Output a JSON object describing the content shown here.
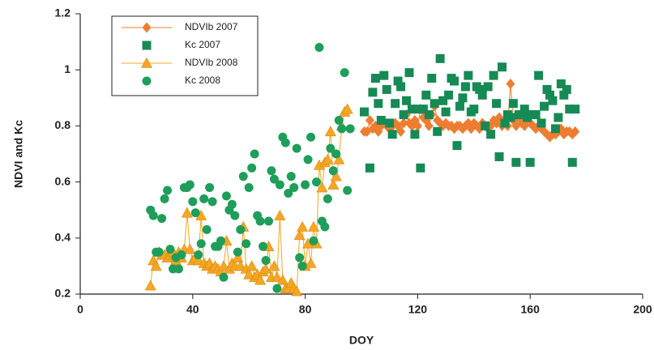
{
  "chart_data": {
    "type": "scatter",
    "xlabel": "DOY",
    "ylabel": "NDVI and Kc",
    "xlim": [
      0,
      200
    ],
    "xticks": [
      0,
      40,
      80,
      120,
      160,
      200
    ],
    "ylim": [
      0.2,
      1.2
    ],
    "yticks": [
      0.2,
      0.4,
      0.6,
      0.8,
      1,
      1.2
    ],
    "series": [
      {
        "name": "NDVIb 2007",
        "color": "#ee7d31",
        "marker": "diamond",
        "line": true,
        "x": [
          101,
          102,
          103,
          104,
          105,
          106,
          107,
          108,
          109,
          110,
          111,
          112,
          113,
          114,
          115,
          116,
          117,
          118,
          119,
          120,
          121,
          122,
          123,
          124,
          125,
          126,
          127,
          128,
          129,
          130,
          131,
          132,
          133,
          134,
          135,
          136,
          137,
          138,
          139,
          140,
          141,
          142,
          143,
          144,
          145,
          146,
          147,
          148,
          149,
          150,
          151,
          152,
          153,
          154,
          155,
          156,
          157,
          158,
          159,
          160,
          161,
          162,
          163,
          164,
          165,
          166,
          167,
          168,
          169,
          170,
          171,
          172,
          173,
          174,
          175,
          176
        ],
        "values": [
          0.78,
          0.78,
          0.82,
          0.79,
          0.8,
          0.78,
          0.8,
          0.81,
          0.8,
          0.79,
          0.8,
          0.81,
          0.8,
          0.78,
          0.81,
          0.84,
          0.81,
          0.8,
          0.82,
          0.8,
          0.86,
          0.83,
          0.82,
          0.8,
          0.84,
          0.87,
          0.82,
          0.81,
          0.8,
          0.81,
          0.8,
          0.8,
          0.79,
          0.8,
          0.8,
          0.79,
          0.8,
          0.81,
          0.79,
          0.81,
          0.8,
          0.79,
          0.81,
          0.8,
          0.79,
          0.8,
          0.82,
          0.81,
          0.83,
          0.8,
          0.81,
          0.8,
          0.95,
          0.82,
          0.8,
          0.83,
          0.81,
          0.8,
          0.82,
          0.81,
          0.8,
          0.79,
          0.8,
          0.79,
          0.78,
          0.77,
          0.76,
          0.77,
          0.77,
          0.78,
          0.79,
          0.77,
          0.78,
          0.78,
          0.77,
          0.78
        ]
      },
      {
        "name": "Kc 2007",
        "color": "#168a55",
        "marker": "square",
        "line": false,
        "x": [
          101,
          103,
          104,
          105,
          106,
          107,
          108,
          109,
          110,
          111,
          112,
          113,
          114,
          115,
          116,
          117,
          118,
          119,
          120,
          121,
          122,
          123,
          124,
          125,
          126,
          127,
          128,
          129,
          130,
          131,
          132,
          133,
          134,
          135,
          136,
          137,
          138,
          139,
          140,
          141,
          142,
          143,
          144,
          145,
          146,
          147,
          148,
          149,
          150,
          151,
          152,
          153,
          154,
          155,
          156,
          157,
          158,
          159,
          160,
          161,
          162,
          163,
          164,
          165,
          166,
          167,
          168,
          169,
          170,
          171,
          172,
          173,
          174,
          175,
          176
        ],
        "values": [
          0.85,
          0.65,
          0.92,
          0.97,
          0.88,
          0.82,
          0.98,
          0.93,
          0.81,
          0.77,
          0.88,
          0.96,
          0.94,
          0.84,
          0.89,
          0.99,
          0.86,
          0.77,
          0.86,
          0.65,
          0.86,
          0.91,
          0.84,
          0.97,
          0.88,
          0.78,
          1.04,
          0.89,
          0.85,
          0.91,
          0.97,
          0.96,
          0.73,
          0.87,
          0.9,
          0.94,
          0.98,
          0.85,
          0.86,
          0.94,
          0.93,
          0.91,
          0.8,
          0.94,
          0.77,
          0.98,
          0.88,
          0.69,
          1.01,
          0.81,
          0.84,
          0.83,
          0.88,
          0.67,
          0.84,
          0.84,
          0.86,
          0.83,
          0.67,
          0.84,
          0.84,
          0.98,
          0.81,
          0.87,
          0.93,
          0.91,
          0.89,
          0.79,
          0.83,
          0.95,
          0.91,
          0.93,
          0.86,
          0.67,
          0.86
        ]
      },
      {
        "name": "NDVIb 2008",
        "color": "#f5a623",
        "marker": "triangle",
        "line": true,
        "x": [
          25,
          26,
          27,
          28,
          29,
          30,
          31,
          32,
          33,
          34,
          35,
          36,
          37,
          38,
          39,
          40,
          41,
          42,
          43,
          44,
          45,
          46,
          47,
          48,
          49,
          50,
          51,
          52,
          53,
          54,
          55,
          56,
          57,
          58,
          59,
          60,
          61,
          62,
          63,
          64,
          65,
          66,
          67,
          68,
          69,
          70,
          71,
          72,
          73,
          74,
          75,
          76,
          77,
          78,
          79,
          80,
          81,
          82,
          83,
          84,
          85,
          86,
          87,
          88,
          89,
          90,
          91,
          92,
          93,
          94,
          95
        ],
        "values": [
          0.23,
          0.32,
          0.3,
          0.35,
          0.34,
          0.34,
          0.33,
          0.34,
          0.35,
          0.32,
          0.35,
          0.33,
          0.36,
          0.49,
          0.36,
          0.32,
          0.33,
          0.32,
          0.48,
          0.31,
          0.3,
          0.31,
          0.29,
          0.3,
          0.29,
          0.28,
          0.3,
          0.39,
          0.29,
          0.31,
          0.3,
          0.33,
          0.3,
          0.44,
          0.29,
          0.27,
          0.3,
          0.26,
          0.27,
          0.25,
          0.28,
          0.29,
          0.37,
          0.26,
          0.3,
          0.26,
          0.48,
          0.25,
          0.22,
          0.22,
          0.24,
          0.22,
          0.21,
          0.41,
          0.44,
          0.3,
          0.38,
          0.31,
          0.44,
          0.38,
          0.66,
          0.58,
          0.67,
          0.68,
          0.78,
          0.59,
          0.62,
          0.68,
          0.8,
          0.85,
          0.86
        ]
      },
      {
        "name": "Kc 2008",
        "color": "#1e9e5a",
        "marker": "circle",
        "line": false,
        "x": [
          25,
          26,
          27,
          28,
          29,
          30,
          31,
          32,
          33,
          34,
          35,
          36,
          37,
          38,
          39,
          40,
          41,
          42,
          43,
          44,
          45,
          46,
          47,
          48,
          49,
          50,
          51,
          52,
          53,
          54,
          55,
          56,
          57,
          58,
          59,
          60,
          61,
          62,
          63,
          64,
          65,
          66,
          67,
          68,
          69,
          70,
          71,
          72,
          73,
          74,
          75,
          76,
          77,
          78,
          79,
          80,
          81,
          82,
          83,
          84,
          85,
          86,
          87,
          88,
          89,
          90,
          91,
          92,
          93,
          94,
          95,
          96
        ],
        "values": [
          0.5,
          0.48,
          0.35,
          0.35,
          0.47,
          0.54,
          0.57,
          0.36,
          0.29,
          0.33,
          0.29,
          0.34,
          0.58,
          0.58,
          0.59,
          0.53,
          0.49,
          0.34,
          0.38,
          0.54,
          0.43,
          0.58,
          0.53,
          0.37,
          0.37,
          0.39,
          0.26,
          0.55,
          0.5,
          0.52,
          0.48,
          0.35,
          0.43,
          0.62,
          0.38,
          0.58,
          0.65,
          0.7,
          0.48,
          0.46,
          0.37,
          0.32,
          0.46,
          0.64,
          0.61,
          0.22,
          0.59,
          0.76,
          0.74,
          0.56,
          0.62,
          0.58,
          0.72,
          0.33,
          0.3,
          0.59,
          0.68,
          0.76,
          0.39,
          0.6,
          1.08,
          0.46,
          0.44,
          0.54,
          0.72,
          0.64,
          0.7,
          0.82,
          0.79,
          0.99,
          0.57,
          0.79
        ]
      }
    ]
  }
}
